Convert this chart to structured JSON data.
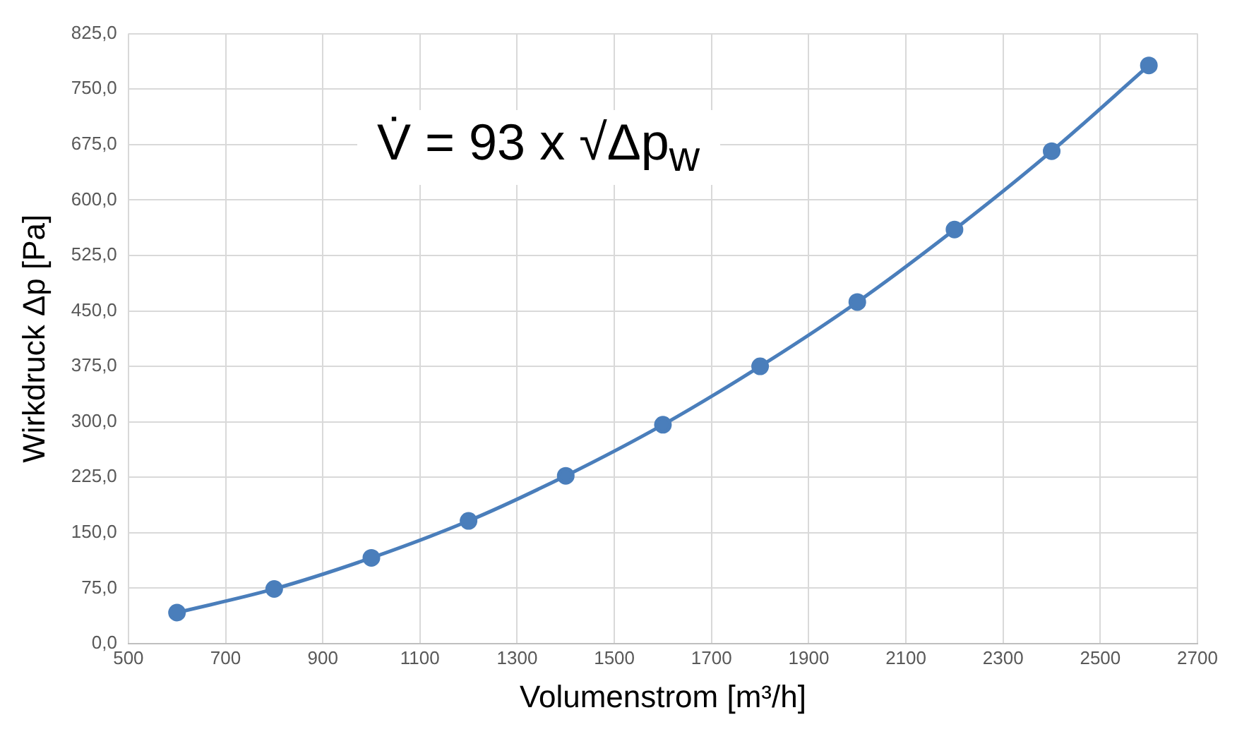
{
  "chart_data": {
    "type": "line",
    "xlabel": "Volumenstrom [m³/h]",
    "ylabel": "Wirkdruck Δp [Pa]",
    "x": [
      600,
      800,
      1000,
      1200,
      1400,
      1600,
      1800,
      2000,
      2200,
      2400,
      2600
    ],
    "series": [
      {
        "color": "#4a7ebb",
        "values": [
          42,
          74,
          116,
          166,
          227,
          296,
          375,
          462,
          560,
          666,
          782
        ]
      }
    ],
    "xlim": [
      500,
      2700
    ],
    "xticks": [
      500,
      700,
      900,
      1100,
      1300,
      1500,
      1700,
      1900,
      2100,
      2300,
      2500,
      2700
    ],
    "ylim": [
      0,
      825
    ],
    "yticks": [
      {
        "value": 0,
        "label": "0,0"
      },
      {
        "value": 75,
        "label": "75,0"
      },
      {
        "value": 150,
        "label": "150,0"
      },
      {
        "value": 225,
        "label": "225,0"
      },
      {
        "value": 300,
        "label": "300,0"
      },
      {
        "value": 375,
        "label": "375,0"
      },
      {
        "value": 450,
        "label": "450,0"
      },
      {
        "value": 525,
        "label": "525,0"
      },
      {
        "value": 600,
        "label": "600,0"
      },
      {
        "value": 675,
        "label": "675,0"
      },
      {
        "value": 750,
        "label": "750,0"
      },
      {
        "value": 825,
        "label": "825,0"
      }
    ],
    "annotations": [
      "V̇ = 93 x √Δp$_{w}$"
    ],
    "grid": true,
    "legend": false,
    "marker": "circle",
    "line_style": "solid"
  }
}
